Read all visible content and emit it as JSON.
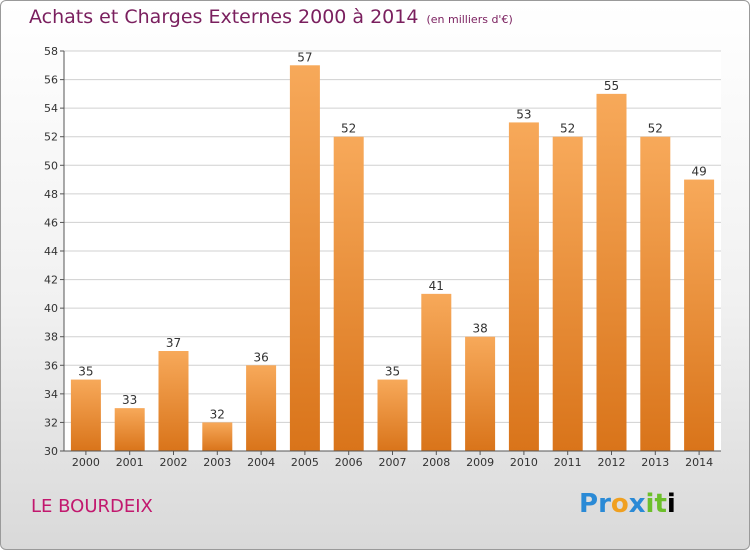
{
  "header": {
    "title": "Achats et Charges Externes 2000 à 2014",
    "unit": "(en milliers d'€)"
  },
  "footer": {
    "location": "LE BOURDEIX",
    "logo_letters": [
      "P",
      "r",
      "o",
      "x",
      "i",
      "t",
      "i"
    ]
  },
  "colors": {
    "bar_top": "#f7a95a",
    "bar_bottom": "#d9741a",
    "title": "#7a1f5e",
    "location": "#c2186e"
  },
  "chart_data": {
    "type": "bar",
    "title": "Achats et Charges Externes 2000 à 2014",
    "subtitle": "(en milliers d'€)",
    "xlabel": "",
    "ylabel": "",
    "categories": [
      "2000",
      "2001",
      "2002",
      "2003",
      "2004",
      "2005",
      "2006",
      "2007",
      "2008",
      "2009",
      "2010",
      "2011",
      "2012",
      "2013",
      "2014"
    ],
    "values": [
      35,
      33,
      37,
      32,
      36,
      57,
      52,
      35,
      41,
      38,
      53,
      52,
      55,
      52,
      49
    ],
    "ylim": [
      30,
      58
    ],
    "yticks": [
      30,
      32,
      34,
      36,
      38,
      40,
      42,
      44,
      46,
      48,
      50,
      52,
      54,
      56,
      58
    ],
    "grid": true,
    "legend": "none"
  }
}
